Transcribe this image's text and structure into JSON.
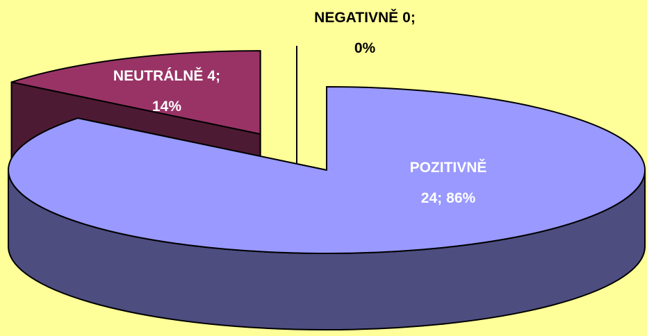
{
  "chart_data": {
    "type": "pie3d",
    "categories": [
      "POZITIVNĚ",
      "NEUTRÁLNĚ",
      "NEGATIVNĚ"
    ],
    "values": [
      24,
      4,
      0
    ],
    "value_labels": [
      "24;",
      "4;",
      "0;"
    ],
    "percentages": [
      86,
      14,
      0
    ],
    "percentage_labels": [
      "86%",
      "14%",
      "0%"
    ],
    "colors": [
      "#9999ff",
      "#993366",
      "#ffffcc"
    ]
  }
}
